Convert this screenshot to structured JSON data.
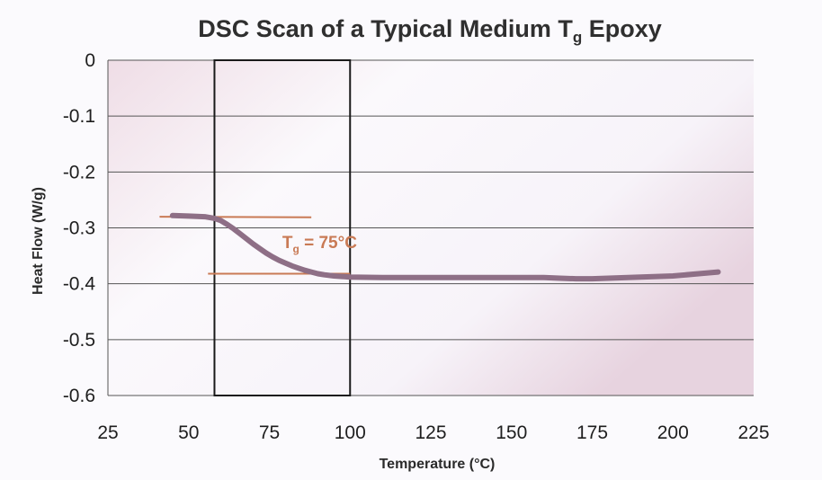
{
  "chart_data": {
    "type": "line",
    "title_main": "DSC Scan of a Typical Medium T",
    "title_sub": "g",
    "title_tail": " Epoxy",
    "xlabel": "Temperature (°C)",
    "ylabel": "Heat Flow (W/g)",
    "xlim": [
      25,
      225
    ],
    "ylim": [
      -0.6,
      0
    ],
    "x_ticks": [
      "25",
      "50",
      "75",
      "100",
      "125",
      "150",
      "175",
      "200",
      "225"
    ],
    "y_ticks": [
      "0",
      "-0.1",
      "-0.2",
      "-0.3",
      "-0.4",
      "-0.5",
      "-0.6"
    ],
    "grid": true,
    "series": [
      {
        "x": [
          45,
          50,
          55,
          58,
          60,
          62,
          64,
          66,
          68,
          70,
          72,
          74,
          76,
          78,
          80,
          82,
          84,
          86,
          88,
          90,
          92,
          95,
          100,
          110,
          120,
          130,
          140,
          150,
          160,
          165,
          170,
          175,
          180,
          190,
          200,
          210,
          214
        ],
        "y": [
          -0.278,
          -0.279,
          -0.28,
          -0.283,
          -0.287,
          -0.294,
          -0.302,
          -0.311,
          -0.32,
          -0.329,
          -0.337,
          -0.345,
          -0.352,
          -0.358,
          -0.363,
          -0.368,
          -0.372,
          -0.376,
          -0.379,
          -0.382,
          -0.384,
          -0.386,
          -0.388,
          -0.389,
          -0.389,
          -0.389,
          -0.389,
          -0.389,
          -0.389,
          -0.39,
          -0.391,
          -0.391,
          -0.39,
          -0.388,
          -0.386,
          -0.381,
          -0.379
        ],
        "color": "#8e6f86"
      }
    ],
    "tangent_lines": [
      {
        "x": [
          41,
          88
        ],
        "y": [
          -0.28,
          -0.281
        ]
      },
      {
        "x": [
          56,
          100
        ],
        "y": [
          -0.382,
          -0.382
        ]
      }
    ],
    "highlight_region": {
      "x": [
        58,
        100
      ]
    },
    "annotation": {
      "main": "T",
      "sub": "g",
      "tail": " = 75°C",
      "x": 79,
      "y": -0.325,
      "color": "#c97a55"
    }
  }
}
